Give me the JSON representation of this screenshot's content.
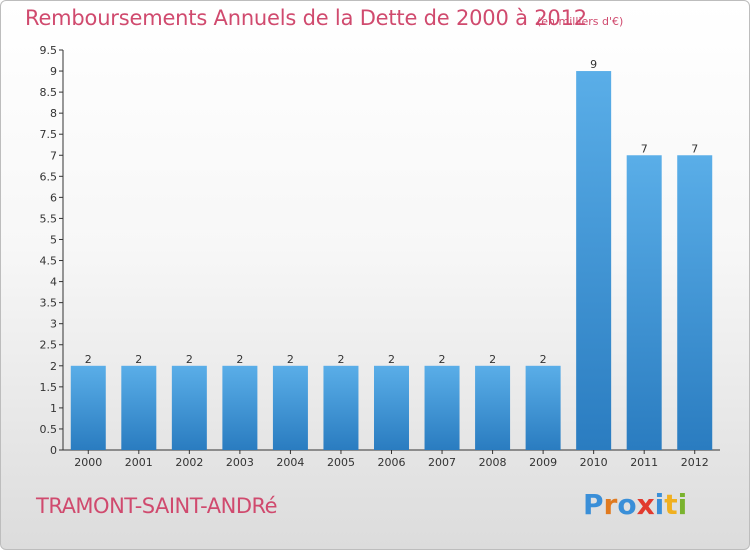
{
  "header": {
    "title": "Remboursements Annuels de la Dette de 2000 à 2012",
    "unit": "(en milliers d'€)"
  },
  "footer": {
    "commune": "TRAMONT-SAINT-ANDRé",
    "brand_letters": [
      "P",
      "r",
      "o",
      "x",
      "i",
      "t",
      "i"
    ],
    "brand_colors": [
      "#3a8fd8",
      "#e07a1f",
      "#3a8fd8",
      "#e23a2e",
      "#3a8fd8",
      "#f0b020",
      "#7ab32e"
    ]
  },
  "chart_data": {
    "type": "bar",
    "categories": [
      "2000",
      "2001",
      "2002",
      "2003",
      "2004",
      "2005",
      "2006",
      "2007",
      "2008",
      "2009",
      "2010",
      "2011",
      "2012"
    ],
    "values": [
      2,
      2,
      2,
      2,
      2,
      2,
      2,
      2,
      2,
      2,
      9,
      7,
      7
    ],
    "data_labels": [
      "2",
      "2",
      "2",
      "2",
      "2",
      "2",
      "2",
      "2",
      "2",
      "2",
      "9",
      "7",
      "7"
    ],
    "ylim": [
      0,
      9.5
    ],
    "yticks": [
      0,
      0.5,
      1,
      1.5,
      2,
      2.5,
      3,
      3.5,
      4,
      4.5,
      5,
      5.5,
      6,
      6.5,
      7,
      7.5,
      8,
      8.5,
      9,
      9.5
    ],
    "ytick_labels": [
      "0",
      "0.5",
      "1",
      "1.5",
      "2",
      "2.5",
      "3",
      "3.5",
      "4",
      "4.5",
      "5",
      "5.5",
      "6",
      "6.5",
      "7",
      "7.5",
      "8",
      "8.5",
      "9",
      "9.5"
    ],
    "grid": false,
    "colors": {
      "bar_light": "#5aaee8",
      "bar_dark": "#2a7cc0",
      "axis": "#333333"
    }
  }
}
